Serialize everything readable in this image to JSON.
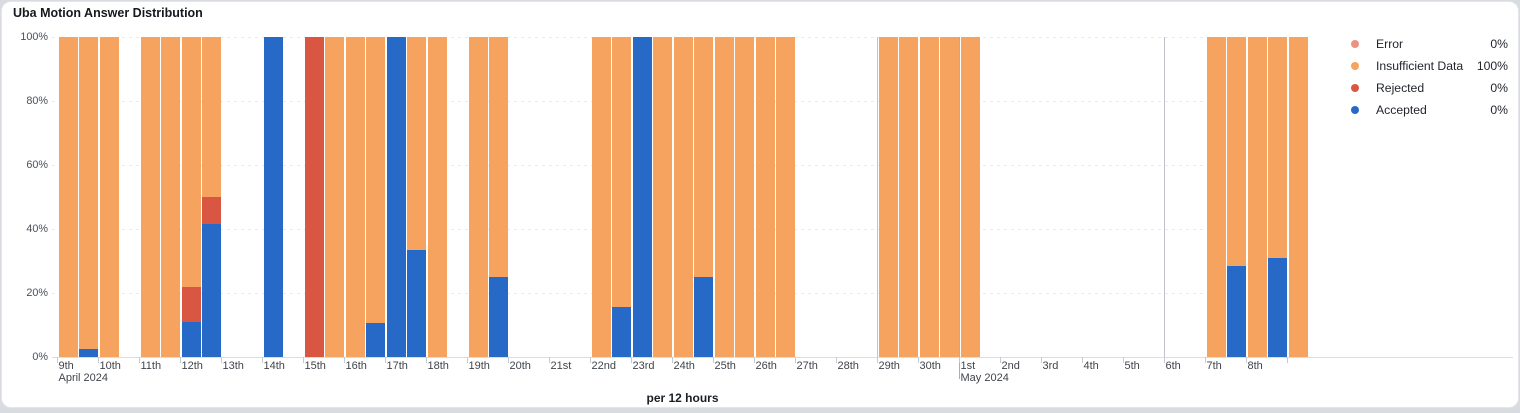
{
  "chart_data": {
    "type": "bar",
    "stacked": true,
    "title": "Uba Motion Answer Distribution",
    "xlabel": "per 12 hours",
    "ylim": [
      0,
      100
    ],
    "yticks": [
      "0%",
      "20%",
      "40%",
      "60%",
      "80%",
      "100%"
    ],
    "legend_position": "right",
    "legend": [
      {
        "key": "error",
        "label": "Error",
        "value": "0%",
        "color": "#EC9183"
      },
      {
        "key": "insufficient",
        "label": "Insufficient Data",
        "value": "100%",
        "color": "#F5A35E"
      },
      {
        "key": "rejected",
        "label": "Rejected",
        "value": "0%",
        "color": "#D95742"
      },
      {
        "key": "accepted",
        "label": "Accepted",
        "value": "0%",
        "color": "#2769C7"
      }
    ],
    "x_axis": {
      "ticks": [
        {
          "d": 0,
          "label": "9th",
          "sub": "April 2024"
        },
        {
          "d": 1,
          "label": "10th"
        },
        {
          "d": 2,
          "label": "11th"
        },
        {
          "d": 3,
          "label": "12th"
        },
        {
          "d": 4,
          "label": "13th"
        },
        {
          "d": 5,
          "label": "14th"
        },
        {
          "d": 6,
          "label": "15th"
        },
        {
          "d": 7,
          "label": "16th"
        },
        {
          "d": 8,
          "label": "17th"
        },
        {
          "d": 9,
          "label": "18th"
        },
        {
          "d": 10,
          "label": "19th"
        },
        {
          "d": 11,
          "label": "20th"
        },
        {
          "d": 12,
          "label": "21st"
        },
        {
          "d": 13,
          "label": "22nd"
        },
        {
          "d": 14,
          "label": "23rd"
        },
        {
          "d": 15,
          "label": "24th"
        },
        {
          "d": 16,
          "label": "25th"
        },
        {
          "d": 17,
          "label": "26th"
        },
        {
          "d": 18,
          "label": "27th"
        },
        {
          "d": 19,
          "label": "28th"
        },
        {
          "d": 20,
          "label": "29th"
        },
        {
          "d": 21,
          "label": "30th"
        },
        {
          "d": 22,
          "label": "1st",
          "sub": "May 2024"
        },
        {
          "d": 23,
          "label": "2nd"
        },
        {
          "d": 24,
          "label": "3rd"
        },
        {
          "d": 25,
          "label": "4th"
        },
        {
          "d": 26,
          "label": "5th"
        },
        {
          "d": 27,
          "label": "6th"
        },
        {
          "d": 28,
          "label": "7th"
        },
        {
          "d": 29,
          "label": "8th"
        },
        {
          "d": 30,
          "label": ""
        }
      ],
      "separators": [
        {
          "d": 20,
          "type": "week"
        },
        {
          "d": 22,
          "type": "month"
        },
        {
          "d": 27,
          "type": "week"
        }
      ]
    },
    "bars": [
      {
        "slot": 0,
        "time": "Apr 9 AM",
        "insufficient": 100
      },
      {
        "slot": 1,
        "time": "Apr 9 PM",
        "accepted": 2.5,
        "insufficient": 97.5
      },
      {
        "slot": 2,
        "time": "Apr 10 AM",
        "insufficient": 100
      },
      {
        "slot": 4,
        "time": "Apr 11 AM",
        "insufficient": 100
      },
      {
        "slot": 5,
        "time": "Apr 11 PM",
        "insufficient": 100
      },
      {
        "slot": 6,
        "time": "Apr 12 AM",
        "accepted": 11,
        "rejected": 11,
        "insufficient": 78
      },
      {
        "slot": 7,
        "time": "Apr 12 PM",
        "accepted": 41.5,
        "rejected": 8.5,
        "insufficient": 50
      },
      {
        "slot": 10,
        "time": "Apr 14 AM",
        "accepted": 100
      },
      {
        "slot": 12,
        "time": "Apr 15 AM",
        "rejected": 100
      },
      {
        "slot": 13,
        "time": "Apr 15 PM",
        "insufficient": 100
      },
      {
        "slot": 14,
        "time": "Apr 16 AM",
        "insufficient": 100
      },
      {
        "slot": 15,
        "time": "Apr 16 PM",
        "accepted": 10.5,
        "insufficient": 89.5
      },
      {
        "slot": 16,
        "time": "Apr 17 AM",
        "accepted": 100
      },
      {
        "slot": 17,
        "time": "Apr 17 PM",
        "accepted": 33.5,
        "insufficient": 66.5
      },
      {
        "slot": 18,
        "time": "Apr 18 AM",
        "insufficient": 100
      },
      {
        "slot": 20,
        "time": "Apr 19 AM",
        "insufficient": 100
      },
      {
        "slot": 21,
        "time": "Apr 19 PM",
        "accepted": 25,
        "insufficient": 75
      },
      {
        "slot": 26,
        "time": "Apr 22 AM",
        "insufficient": 100
      },
      {
        "slot": 27,
        "time": "Apr 22 PM",
        "accepted": 15.5,
        "insufficient": 84.5
      },
      {
        "slot": 28,
        "time": "Apr 23 AM",
        "accepted": 100
      },
      {
        "slot": 29,
        "time": "Apr 23 PM",
        "insufficient": 100
      },
      {
        "slot": 30,
        "time": "Apr 24 AM",
        "insufficient": 100
      },
      {
        "slot": 31,
        "time": "Apr 24 PM",
        "accepted": 25,
        "insufficient": 75
      },
      {
        "slot": 32,
        "time": "Apr 25 AM",
        "insufficient": 100
      },
      {
        "slot": 33,
        "time": "Apr 25 PM",
        "insufficient": 100
      },
      {
        "slot": 34,
        "time": "Apr 26 AM",
        "insufficient": 100
      },
      {
        "slot": 35,
        "time": "Apr 26 PM",
        "insufficient": 100
      },
      {
        "slot": 40,
        "time": "Apr 29 AM",
        "insufficient": 100
      },
      {
        "slot": 41,
        "time": "Apr 29 PM",
        "insufficient": 100
      },
      {
        "slot": 42,
        "time": "Apr 30 AM",
        "insufficient": 100
      },
      {
        "slot": 43,
        "time": "Apr 30 PM",
        "insufficient": 100
      },
      {
        "slot": 44,
        "time": "May 1 AM",
        "insufficient": 100
      },
      {
        "slot": 56,
        "time": "May 7 AM",
        "insufficient": 100
      },
      {
        "slot": 57,
        "time": "May 7 PM",
        "accepted": 28.5,
        "insufficient": 71.5
      },
      {
        "slot": 58,
        "time": "May 8 AM",
        "insufficient": 100
      },
      {
        "slot": 59,
        "time": "May 8 PM",
        "accepted": 31,
        "insufficient": 69
      },
      {
        "slot": 60,
        "time": "May 9 AM",
        "insufficient": 100
      }
    ]
  }
}
